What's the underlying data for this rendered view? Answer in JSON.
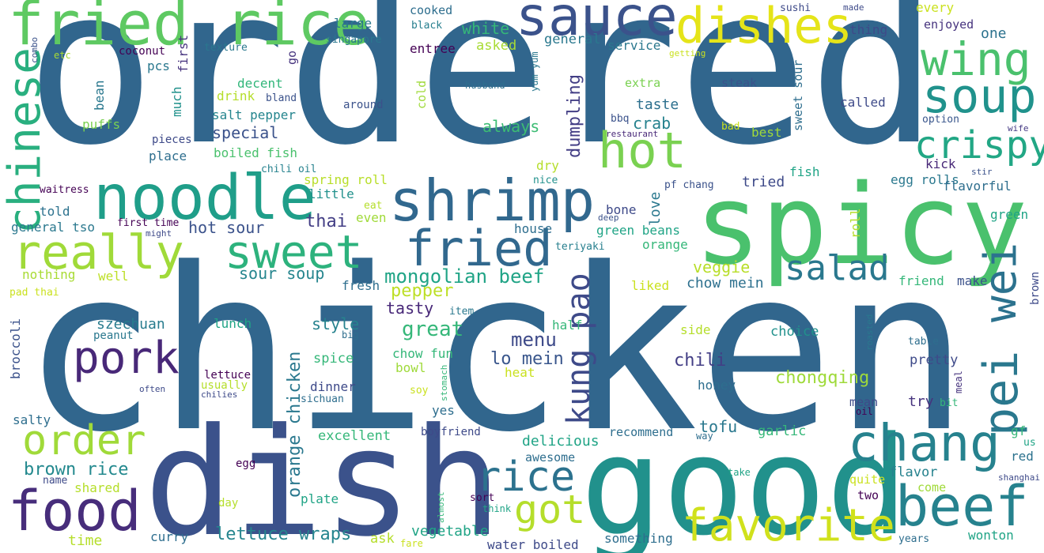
{
  "words": [
    {
      "text": "ordered",
      "color": "#31668d"
    },
    {
      "text": "chicken",
      "color": "#31668d"
    },
    {
      "text": "dish",
      "color": "#3b528b"
    },
    {
      "text": "good",
      "color": "#21918c"
    },
    {
      "text": "spicy",
      "color": "#4ac16d"
    },
    {
      "text": "fried rice",
      "color": "#5ec962"
    },
    {
      "text": "sauce",
      "color": "#3b528b"
    },
    {
      "text": "dishes",
      "color": "#e5e419"
    },
    {
      "text": "wing",
      "color": "#4ac16d"
    },
    {
      "text": "soup",
      "color": "#20928c"
    },
    {
      "text": "hot",
      "color": "#7ad151"
    },
    {
      "text": "crispy",
      "color": "#22a785"
    },
    {
      "text": "noodle",
      "color": "#1f9e89"
    },
    {
      "text": "shrimp",
      "color": "#31688e"
    },
    {
      "text": "chinese",
      "color": "#29af7f"
    },
    {
      "text": "really",
      "color": "#a0da39"
    },
    {
      "text": "sweet",
      "color": "#2db27d"
    },
    {
      "text": "fried",
      "color": "#31688e"
    },
    {
      "text": "salad",
      "color": "#2a788e"
    },
    {
      "text": "pei",
      "color": "#2a788e"
    },
    {
      "text": "wei",
      "color": "#2c728e"
    },
    {
      "text": "pork",
      "color": "#482878"
    },
    {
      "text": "order",
      "color": "#a0da39"
    },
    {
      "text": "food",
      "color": "#472d7b"
    },
    {
      "text": "chang",
      "color": "#26828e"
    },
    {
      "text": "beef",
      "color": "#26828e"
    },
    {
      "text": "favorite",
      "color": "#d0e11c"
    },
    {
      "text": "rice",
      "color": "#2c728e"
    },
    {
      "text": "got",
      "color": "#b5de2b"
    },
    {
      "text": "kung pao",
      "color": "#3e4a89"
    },
    {
      "text": "mongolian beef",
      "color": "#20a486"
    },
    {
      "text": "sour soup",
      "color": "#25858e"
    },
    {
      "text": "lettuce wraps",
      "color": "#25858e"
    },
    {
      "text": "brown rice",
      "color": "#23898e"
    },
    {
      "text": "orange chicken",
      "color": "#2a788e"
    },
    {
      "text": "great",
      "color": "#35b779"
    },
    {
      "text": "menu",
      "color": "#3e4a89"
    },
    {
      "text": "lo mein",
      "color": "#39568c"
    },
    {
      "text": "chili",
      "color": "#433e85"
    },
    {
      "text": "chongqing",
      "color": "#9fda3a"
    },
    {
      "text": "chow mein",
      "color": "#2d708e"
    },
    {
      "text": "veggie",
      "color": "#b8de29"
    },
    {
      "text": "crab",
      "color": "#26828e"
    },
    {
      "text": "taste",
      "color": "#2d708e"
    },
    {
      "text": "always",
      "color": "#3dbc74"
    },
    {
      "text": "dumpling",
      "color": "#433e85"
    },
    {
      "text": "tasty",
      "color": "#482878"
    },
    {
      "text": "pepper",
      "color": "#bddf26"
    },
    {
      "text": "szechuan",
      "color": "#287c8e"
    },
    {
      "text": "style",
      "color": "#26828e"
    },
    {
      "text": "thai",
      "color": "#433e85"
    },
    {
      "text": "hot sour",
      "color": "#3b528b"
    },
    {
      "text": "special",
      "color": "#3b528b"
    },
    {
      "text": "salt pepper",
      "color": "#25858e"
    },
    {
      "text": "boiled fish",
      "color": "#4ac16d"
    },
    {
      "text": "decent",
      "color": "#32b67a"
    },
    {
      "text": "drink",
      "color": "#b5de2b"
    },
    {
      "text": "bland",
      "color": "#3b528b"
    },
    {
      "text": "pcs",
      "color": "#2a788e"
    },
    {
      "text": "large",
      "color": "#2a788e"
    },
    {
      "text": "white",
      "color": "#35b779"
    },
    {
      "text": "asked",
      "color": "#a8db34"
    },
    {
      "text": "entree",
      "color": "#440154"
    },
    {
      "text": "cooked",
      "color": "#2e6e8e"
    },
    {
      "text": "black",
      "color": "#277f8e"
    },
    {
      "text": "general",
      "color": "#2a788e"
    },
    {
      "text": "service",
      "color": "#2a788e"
    },
    {
      "text": "one",
      "color": "#2c728e"
    },
    {
      "text": "every",
      "color": "#cae11f"
    },
    {
      "text": "thing",
      "color": "#3e4a89"
    },
    {
      "text": "enjoyed",
      "color": "#46337e"
    },
    {
      "text": "sushi",
      "color": "#3e4a89"
    },
    {
      "text": "made",
      "color": "#3e4a89"
    },
    {
      "text": "coconut",
      "color": "#440154"
    },
    {
      "text": "texture",
      "color": "#2a788e"
    },
    {
      "text": "singapore",
      "color": "#2a788e"
    },
    {
      "text": "etc",
      "color": "#a8db34"
    },
    {
      "text": "combo",
      "color": "#3b528b"
    },
    {
      "text": "first",
      "color": "#46337e"
    },
    {
      "text": "go",
      "color": "#46337e"
    },
    {
      "text": "cold",
      "color": "#9fda3a"
    },
    {
      "text": "husband",
      "color": "#2e6e8e"
    },
    {
      "text": "yum yum",
      "color": "#2a788e"
    },
    {
      "text": "extra",
      "color": "#7ad151"
    },
    {
      "text": "getting",
      "color": "#cae11f"
    },
    {
      "text": "steak",
      "color": "#3b528b"
    },
    {
      "text": "sweet sour",
      "color": "#2e6e8e"
    },
    {
      "text": "called",
      "color": "#3e4a89"
    },
    {
      "text": "option",
      "color": "#39568c"
    },
    {
      "text": "wife",
      "color": "#443983"
    },
    {
      "text": "bean",
      "color": "#2a788e"
    },
    {
      "text": "much",
      "color": "#21918c"
    },
    {
      "text": "puffs",
      "color": "#7ad151"
    },
    {
      "text": "pieces",
      "color": "#3e4a89"
    },
    {
      "text": "place",
      "color": "#2e6e8e"
    },
    {
      "text": "around",
      "color": "#3b528b"
    },
    {
      "text": "bbq",
      "color": "#3b528b"
    },
    {
      "text": "restaurant",
      "color": "#482878"
    },
    {
      "text": "bad",
      "color": "#cae11f"
    },
    {
      "text": "best",
      "color": "#a0da39"
    },
    {
      "text": "chili oil",
      "color": "#26828e"
    },
    {
      "text": "waitress",
      "color": "#440154"
    },
    {
      "text": "spring roll",
      "color": "#b8de29"
    },
    {
      "text": "little",
      "color": "#21918c"
    },
    {
      "text": "dry",
      "color": "#b5de2b"
    },
    {
      "text": "nice",
      "color": "#21918c"
    },
    {
      "text": "pf chang",
      "color": "#3b528b"
    },
    {
      "text": "fish",
      "color": "#20a486"
    },
    {
      "text": "tried",
      "color": "#3e4a89"
    },
    {
      "text": "kick",
      "color": "#482878"
    },
    {
      "text": "stir",
      "color": "#3b528b"
    },
    {
      "text": "egg rolls",
      "color": "#2a788e"
    },
    {
      "text": "flavorful",
      "color": "#2e6e8e"
    },
    {
      "text": "told",
      "color": "#2c728e"
    },
    {
      "text": "general tso",
      "color": "#2a788e"
    },
    {
      "text": "first time",
      "color": "#440154"
    },
    {
      "text": "might",
      "color": "#3e4a89"
    },
    {
      "text": "eat",
      "color": "#b5de2b"
    },
    {
      "text": "even",
      "color": "#a0da39"
    },
    {
      "text": "deep",
      "color": "#3b528b"
    },
    {
      "text": "bone",
      "color": "#3e4a89"
    },
    {
      "text": "love",
      "color": "#2a788e"
    },
    {
      "text": "roll",
      "color": "#b5de2b"
    },
    {
      "text": "green",
      "color": "#20a486"
    },
    {
      "text": "house",
      "color": "#2e6e8e"
    },
    {
      "text": "teriyaki",
      "color": "#277f8e"
    },
    {
      "text": "green beans",
      "color": "#20a486"
    },
    {
      "text": "orange",
      "color": "#35b779"
    },
    {
      "text": "nothing",
      "color": "#a8db34"
    },
    {
      "text": "well",
      "color": "#bddf26"
    },
    {
      "text": "pad thai",
      "color": "#cae11f"
    },
    {
      "text": "fresh",
      "color": "#2e6e8e"
    },
    {
      "text": "item",
      "color": "#2a788e"
    },
    {
      "text": "liked",
      "color": "#cae11f"
    },
    {
      "text": "friend",
      "color": "#35b779"
    },
    {
      "text": "make",
      "color": "#3b528b"
    },
    {
      "text": "brown",
      "color": "#3e4a89"
    },
    {
      "text": "half",
      "color": "#35b779"
    },
    {
      "text": "side",
      "color": "#b5de2b"
    },
    {
      "text": "choice",
      "color": "#21918c"
    },
    {
      "text": "roasted",
      "color": "#2a788e"
    },
    {
      "text": "table",
      "color": "#2e6e8e"
    },
    {
      "text": "broccoli",
      "color": "#3b528b"
    },
    {
      "text": "peanut",
      "color": "#2a788e"
    },
    {
      "text": "big",
      "color": "#2e6e8e"
    },
    {
      "text": "lunch",
      "color": "#20a486"
    },
    {
      "text": "chow fun",
      "color": "#35b779"
    },
    {
      "text": "bowl",
      "color": "#9fda3a"
    },
    {
      "text": "heat",
      "color": "#cae11f"
    },
    {
      "text": "spice",
      "color": "#35b779"
    },
    {
      "text": "stomach",
      "color": "#35b779"
    },
    {
      "text": "lettuce",
      "color": "#440154"
    },
    {
      "text": "usually",
      "color": "#b5de2b"
    },
    {
      "text": "chilies",
      "color": "#3e4a89"
    },
    {
      "text": "often",
      "color": "#3e4a89"
    },
    {
      "text": "dinner",
      "color": "#3e4a89"
    },
    {
      "text": "sichuan",
      "color": "#2e6e8e"
    },
    {
      "text": "soy",
      "color": "#cae11f"
    },
    {
      "text": "honey",
      "color": "#2e6e8e"
    },
    {
      "text": "pretty",
      "color": "#3e4a89"
    },
    {
      "text": "meal",
      "color": "#46337e"
    },
    {
      "text": "salty",
      "color": "#2e6e8e"
    },
    {
      "text": "yes",
      "color": "#2e6e8e"
    },
    {
      "text": "mean",
      "color": "#3e4a89"
    },
    {
      "text": "oil",
      "color": "#440154"
    },
    {
      "text": "try",
      "color": "#46337e"
    },
    {
      "text": "bit",
      "color": "#35b779"
    },
    {
      "text": "excellent",
      "color": "#35b779"
    },
    {
      "text": "boyfriend",
      "color": "#3e4a89"
    },
    {
      "text": "tofu",
      "color": "#2a788e"
    },
    {
      "text": "garlic",
      "color": "#35b779"
    },
    {
      "text": "gf",
      "color": "#35b779"
    },
    {
      "text": "delicious",
      "color": "#20a486"
    },
    {
      "text": "recommend",
      "color": "#2e6e8e"
    },
    {
      "text": "way",
      "color": "#2e6e8e"
    },
    {
      "text": "us",
      "color": "#20a486"
    },
    {
      "text": "egg",
      "color": "#440154"
    },
    {
      "text": "awesome",
      "color": "#2e6e8e"
    },
    {
      "text": "red",
      "color": "#2c728e"
    },
    {
      "text": "name",
      "color": "#3e4a89"
    },
    {
      "text": "shared",
      "color": "#b5de2b"
    },
    {
      "text": "almost",
      "color": "#35b779"
    },
    {
      "text": "plate",
      "color": "#20a486"
    },
    {
      "text": "sort",
      "color": "#440154"
    },
    {
      "text": "think",
      "color": "#20a486"
    },
    {
      "text": "take",
      "color": "#20a486"
    },
    {
      "text": "quite",
      "color": "#cae11f"
    },
    {
      "text": "shanghai",
      "color": "#3e4a89"
    },
    {
      "text": "flavor",
      "color": "#26828e"
    },
    {
      "text": "come",
      "color": "#a0da39"
    },
    {
      "text": "day",
      "color": "#b5de2b"
    },
    {
      "text": "two",
      "color": "#440154"
    },
    {
      "text": "vegetable",
      "color": "#20a486"
    },
    {
      "text": "time",
      "color": "#b5de2b"
    },
    {
      "text": "curry",
      "color": "#2e6e8e"
    },
    {
      "text": "ask",
      "color": "#b5de2b"
    },
    {
      "text": "fare",
      "color": "#cae11f"
    },
    {
      "text": "water boiled",
      "color": "#3e4a89"
    },
    {
      "text": "something",
      "color": "#2e6e8e"
    },
    {
      "text": "years",
      "color": "#2e6e8e"
    },
    {
      "text": "wonton",
      "color": "#20a486"
    }
  ]
}
